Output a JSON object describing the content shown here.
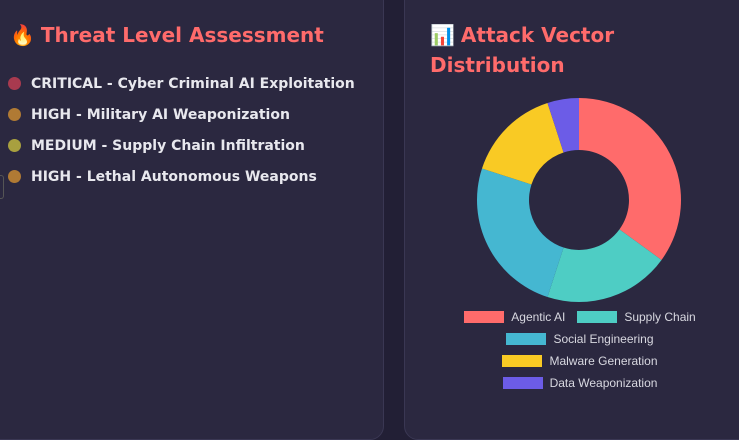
{
  "left_panel": {
    "icon": "🔥",
    "title": "Threat Level Assessment",
    "threats": [
      {
        "label": "CRITICAL - Cyber Criminal AI Exploitation",
        "color": "#a83a4f"
      },
      {
        "label": "HIGH - Military AI Weaponization",
        "color": "#b07a34"
      },
      {
        "label": "MEDIUM - Supply Chain Infiltration",
        "color": "#a8a03f"
      },
      {
        "label": "HIGH - Lethal Autonomous Weapons",
        "color": "#b07a34"
      }
    ]
  },
  "right_panel": {
    "icon": "📊",
    "title": "Attack Vector Distribution"
  },
  "chart_data": {
    "type": "pie",
    "subtype": "doughnut",
    "title": "Attack Vector Distribution",
    "categories": [
      "Agentic AI",
      "Supply Chain",
      "Social Engineering",
      "Malware Generation",
      "Data Weaponization"
    ],
    "values": [
      35,
      20,
      25,
      15,
      5
    ],
    "colors": [
      "#ff6b6b",
      "#4ecdc4",
      "#45b7d1",
      "#f9ca24",
      "#6c5ce7"
    ],
    "legend_position": "bottom"
  }
}
